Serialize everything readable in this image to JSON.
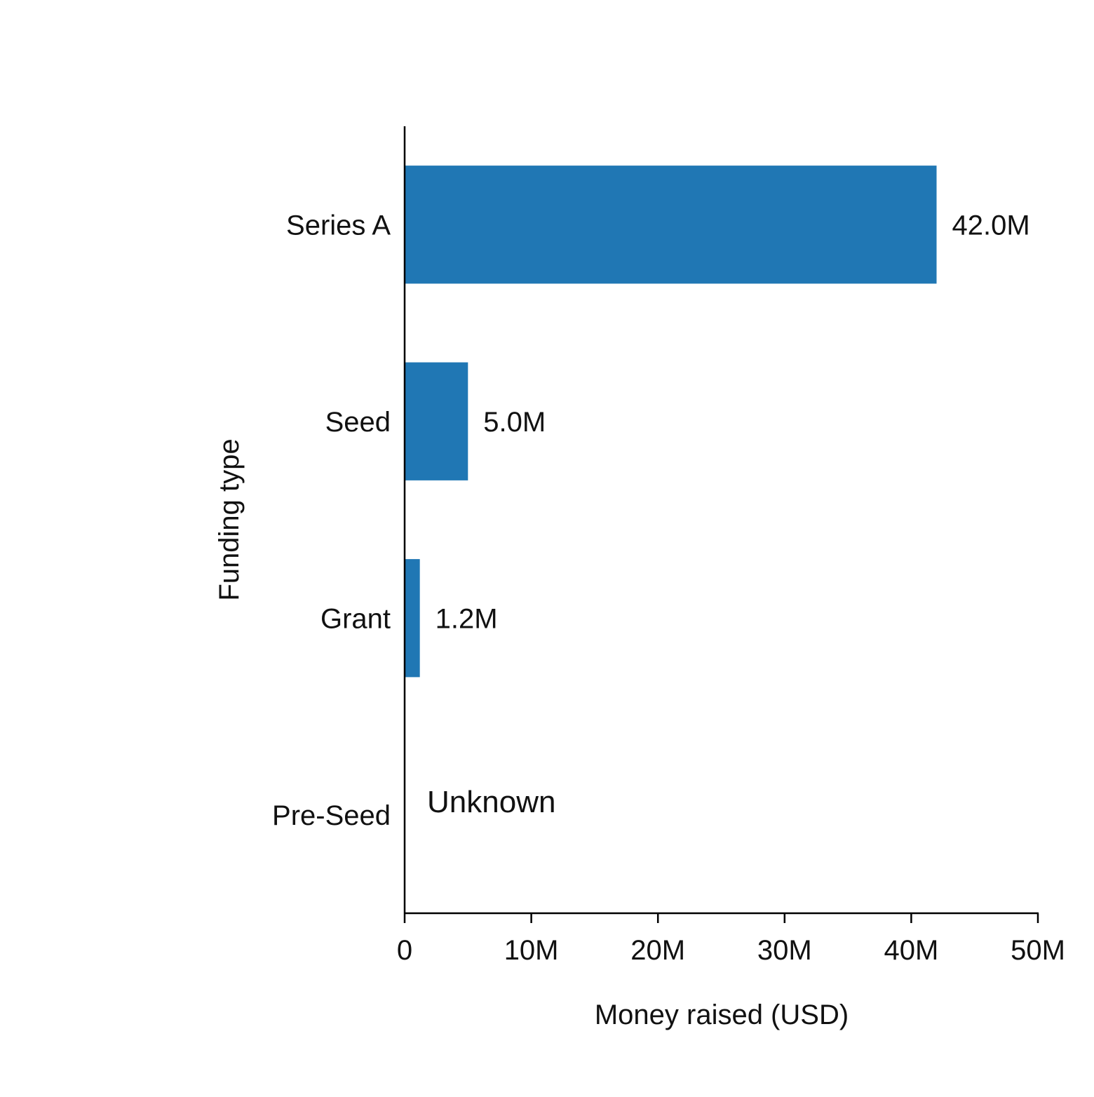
{
  "chart_data": {
    "type": "bar",
    "orientation": "horizontal",
    "title": "",
    "xlabel": "Money raised (USD)",
    "ylabel": "Funding type",
    "categories": [
      "Series A",
      "Seed",
      "Grant",
      "Pre-Seed"
    ],
    "values": [
      42.0,
      5.0,
      1.2,
      null
    ],
    "value_units": "M USD",
    "data_labels": [
      "42.0M",
      "5.0M",
      "1.2M",
      "Unknown"
    ],
    "xlim": [
      0,
      50
    ],
    "xticks": [
      0,
      10,
      20,
      30,
      40,
      50
    ],
    "xtick_labels": [
      "0",
      "10M",
      "20M",
      "30M",
      "40M",
      "50M"
    ],
    "grid": false,
    "legend": "none",
    "bar_color": "#2077b4"
  }
}
